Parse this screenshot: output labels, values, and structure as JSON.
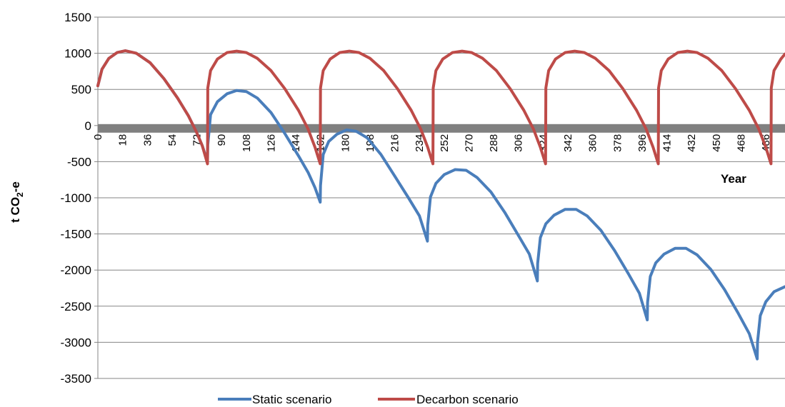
{
  "chart_data": {
    "type": "line",
    "xlabel": "Year",
    "ylabel": "t CO",
    "ylabel_subscript": "2",
    "ylabel_suffix": "-e",
    "ylim": [
      -3500,
      1500
    ],
    "xlim": [
      0,
      500
    ],
    "y_ticks": [
      "1500",
      "1000",
      "500",
      "0",
      "-500",
      "-1000",
      "-1500",
      "-2000",
      "-2500",
      "-3000",
      "-3500"
    ],
    "x_tick_labels": [
      "0",
      "18",
      "36",
      "54",
      "72",
      "90",
      "108",
      "126",
      "144",
      "162",
      "180",
      "198",
      "216",
      "234",
      "252",
      "270",
      "288",
      "306",
      "324",
      "342",
      "360",
      "378",
      "396",
      "414",
      "432",
      "450",
      "468",
      "486"
    ],
    "grid": "horizontal",
    "legend_position": "bottom",
    "colors": {
      "static": "#4a7ebb",
      "decarbon": "#be4b48",
      "zero_line": "#808080"
    },
    "series": [
      {
        "name": "Static scenario",
        "color": "#4a7ebb",
        "points": [
          [
            0,
            550
          ],
          [
            3,
            780
          ],
          [
            8,
            930
          ],
          [
            14,
            1010
          ],
          [
            20,
            1035
          ],
          [
            28,
            1000
          ],
          [
            38,
            870
          ],
          [
            48,
            650
          ],
          [
            58,
            380
          ],
          [
            66,
            130
          ],
          [
            72,
            -100
          ],
          [
            76,
            -280
          ],
          [
            79.8,
            -500
          ],
          [
            80,
            -270
          ],
          [
            82,
            150
          ],
          [
            87,
            330
          ],
          [
            94,
            440
          ],
          [
            101,
            485
          ],
          [
            108,
            470
          ],
          [
            116,
            380
          ],
          [
            126,
            180
          ],
          [
            136,
            -110
          ],
          [
            146,
            -420
          ],
          [
            153,
            -650
          ],
          [
            158,
            -860
          ],
          [
            161.8,
            -1060
          ],
          [
            162,
            -830
          ],
          [
            164,
            -400
          ],
          [
            168,
            -220
          ],
          [
            174,
            -120
          ],
          [
            181,
            -60
          ],
          [
            188,
            -80
          ],
          [
            196,
            -170
          ],
          [
            206,
            -400
          ],
          [
            216,
            -700
          ],
          [
            226,
            -1000
          ],
          [
            234,
            -1250
          ],
          [
            239.8,
            -1600
          ],
          [
            240,
            -1380
          ],
          [
            242,
            -990
          ],
          [
            246,
            -800
          ],
          [
            252,
            -680
          ],
          [
            260,
            -610
          ],
          [
            268,
            -620
          ],
          [
            276,
            -720
          ],
          [
            286,
            -920
          ],
          [
            296,
            -1200
          ],
          [
            306,
            -1520
          ],
          [
            314,
            -1780
          ],
          [
            319.8,
            -2150
          ],
          [
            320,
            -1910
          ],
          [
            322,
            -1550
          ],
          [
            326,
            -1360
          ],
          [
            332,
            -1240
          ],
          [
            340,
            -1160
          ],
          [
            348,
            -1160
          ],
          [
            356,
            -1250
          ],
          [
            366,
            -1450
          ],
          [
            376,
            -1730
          ],
          [
            386,
            -2050
          ],
          [
            394,
            -2320
          ],
          [
            399.8,
            -2690
          ],
          [
            400,
            -2450
          ],
          [
            402,
            -2090
          ],
          [
            406,
            -1900
          ],
          [
            412,
            -1780
          ],
          [
            420,
            -1700
          ],
          [
            428,
            -1700
          ],
          [
            436,
            -1790
          ],
          [
            446,
            -1990
          ],
          [
            456,
            -2270
          ],
          [
            466,
            -2600
          ],
          [
            474,
            -2880
          ],
          [
            479.8,
            -3230
          ],
          [
            480,
            -3000
          ],
          [
            482,
            -2630
          ],
          [
            486,
            -2440
          ],
          [
            492,
            -2300
          ],
          [
            500,
            -2230
          ]
        ]
      },
      {
        "name": "Decarbon scenario",
        "color": "#be4b48",
        "points": [
          [
            0,
            550
          ],
          [
            3,
            780
          ],
          [
            8,
            930
          ],
          [
            14,
            1010
          ],
          [
            20,
            1035
          ],
          [
            28,
            1000
          ],
          [
            38,
            870
          ],
          [
            48,
            650
          ],
          [
            58,
            380
          ],
          [
            66,
            130
          ],
          [
            72,
            -100
          ],
          [
            76,
            -280
          ],
          [
            79.8,
            -530
          ],
          [
            80,
            520
          ],
          [
            82,
            760
          ],
          [
            87,
            920
          ],
          [
            94,
            1010
          ],
          [
            101,
            1030
          ],
          [
            108,
            1010
          ],
          [
            116,
            930
          ],
          [
            126,
            760
          ],
          [
            136,
            510
          ],
          [
            146,
            210
          ],
          [
            153,
            -50
          ],
          [
            158,
            -300
          ],
          [
            161.8,
            -530
          ],
          [
            162,
            520
          ],
          [
            164,
            760
          ],
          [
            169,
            920
          ],
          [
            176,
            1010
          ],
          [
            183,
            1030
          ],
          [
            190,
            1010
          ],
          [
            198,
            930
          ],
          [
            208,
            760
          ],
          [
            218,
            510
          ],
          [
            228,
            210
          ],
          [
            235,
            -50
          ],
          [
            240,
            -300
          ],
          [
            243.8,
            -530
          ],
          [
            244,
            520
          ],
          [
            246,
            760
          ],
          [
            251,
            920
          ],
          [
            258,
            1010
          ],
          [
            265,
            1030
          ],
          [
            272,
            1010
          ],
          [
            280,
            930
          ],
          [
            290,
            760
          ],
          [
            300,
            510
          ],
          [
            310,
            210
          ],
          [
            317,
            -50
          ],
          [
            322,
            -300
          ],
          [
            325.8,
            -530
          ],
          [
            326,
            520
          ],
          [
            328,
            760
          ],
          [
            333,
            920
          ],
          [
            340,
            1010
          ],
          [
            347,
            1030
          ],
          [
            354,
            1010
          ],
          [
            362,
            930
          ],
          [
            372,
            760
          ],
          [
            382,
            510
          ],
          [
            392,
            210
          ],
          [
            399,
            -50
          ],
          [
            404,
            -300
          ],
          [
            407.8,
            -530
          ],
          [
            408,
            520
          ],
          [
            410,
            760
          ],
          [
            415,
            920
          ],
          [
            422,
            1010
          ],
          [
            429,
            1030
          ],
          [
            436,
            1010
          ],
          [
            444,
            930
          ],
          [
            454,
            760
          ],
          [
            464,
            510
          ],
          [
            474,
            210
          ],
          [
            481,
            -50
          ],
          [
            486,
            -300
          ],
          [
            489.8,
            -530
          ],
          [
            490,
            520
          ],
          [
            492,
            760
          ],
          [
            497,
            920
          ],
          [
            500,
            990
          ]
        ]
      }
    ]
  }
}
